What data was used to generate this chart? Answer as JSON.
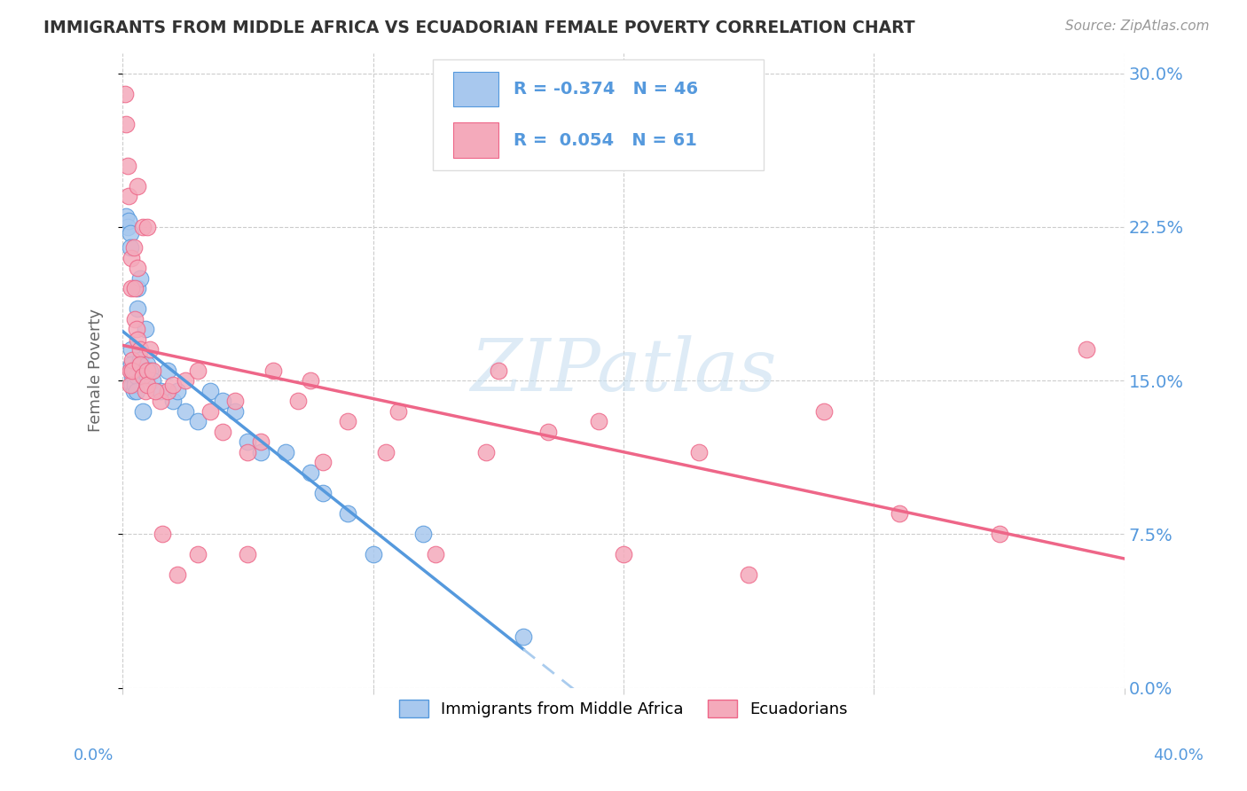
{
  "title": "IMMIGRANTS FROM MIDDLE AFRICA VS ECUADORIAN FEMALE POVERTY CORRELATION CHART",
  "source": "Source: ZipAtlas.com",
  "ylabel": "Female Poverty",
  "yticks": [
    "0.0%",
    "7.5%",
    "15.0%",
    "22.5%",
    "30.0%"
  ],
  "ytick_vals": [
    0.0,
    7.5,
    15.0,
    22.5,
    30.0
  ],
  "xlim": [
    0.0,
    40.0
  ],
  "ylim": [
    0.0,
    31.0
  ],
  "legend_label1": "Immigrants from Middle Africa",
  "legend_label2": "Ecuadorians",
  "R1": "-0.374",
  "N1": "46",
  "R2": "0.054",
  "N2": "61",
  "color_blue": "#A8C8EE",
  "color_pink": "#F4AABB",
  "color_line_blue": "#5599DD",
  "color_line_pink": "#EE6688",
  "color_line_dashed": "#AACCEE",
  "color_axis": "#5599DD",
  "watermark_color": "#C8DFF0",
  "blue_points_x": [
    0.15,
    0.2,
    0.25,
    0.3,
    0.3,
    0.35,
    0.35,
    0.4,
    0.4,
    0.4,
    0.45,
    0.45,
    0.5,
    0.5,
    0.5,
    0.55,
    0.55,
    0.6,
    0.6,
    0.7,
    0.7,
    0.8,
    0.8,
    0.9,
    1.0,
    1.0,
    1.1,
    1.2,
    1.5,
    1.8,
    2.0,
    2.2,
    2.5,
    3.0,
    3.5,
    4.0,
    4.5,
    5.0,
    5.5,
    6.5,
    7.5,
    8.0,
    9.0,
    10.0,
    12.0,
    16.0
  ],
  "blue_points_y": [
    23.0,
    22.5,
    22.8,
    22.2,
    21.5,
    16.5,
    15.8,
    15.5,
    15.2,
    14.8,
    15.5,
    14.5,
    15.5,
    15.0,
    14.8,
    15.2,
    14.5,
    19.5,
    18.5,
    20.0,
    16.0,
    15.5,
    13.5,
    17.5,
    15.8,
    15.2,
    15.5,
    15.0,
    14.5,
    15.5,
    14.0,
    14.5,
    13.5,
    13.0,
    14.5,
    14.0,
    13.5,
    12.0,
    11.5,
    11.5,
    10.5,
    9.5,
    8.5,
    6.5,
    7.5,
    2.5
  ],
  "pink_points_x": [
    0.1,
    0.15,
    0.2,
    0.25,
    0.3,
    0.3,
    0.35,
    0.35,
    0.4,
    0.4,
    0.45,
    0.5,
    0.5,
    0.55,
    0.6,
    0.6,
    0.7,
    0.7,
    0.8,
    0.9,
    1.0,
    1.0,
    1.1,
    1.2,
    1.5,
    1.8,
    2.0,
    2.5,
    3.0,
    3.5,
    4.0,
    4.5,
    5.0,
    5.5,
    6.0,
    7.0,
    7.5,
    9.0,
    10.5,
    11.0,
    12.5,
    14.5,
    15.0,
    17.0,
    19.0,
    20.0,
    23.0,
    25.0,
    28.0,
    31.0,
    35.0,
    0.6,
    0.8,
    1.0,
    1.3,
    1.6,
    2.2,
    3.0,
    5.0,
    8.0,
    38.5
  ],
  "pink_points_y": [
    29.0,
    27.5,
    25.5,
    24.0,
    15.5,
    14.8,
    21.0,
    19.5,
    16.0,
    15.5,
    21.5,
    19.5,
    18.0,
    17.5,
    20.5,
    17.0,
    16.5,
    15.8,
    15.2,
    14.5,
    15.5,
    14.8,
    16.5,
    15.5,
    14.0,
    14.5,
    14.8,
    15.0,
    15.5,
    13.5,
    12.5,
    14.0,
    11.5,
    12.0,
    15.5,
    14.0,
    15.0,
    13.0,
    11.5,
    13.5,
    6.5,
    11.5,
    15.5,
    12.5,
    13.0,
    6.5,
    11.5,
    5.5,
    13.5,
    8.5,
    7.5,
    24.5,
    22.5,
    22.5,
    14.5,
    7.5,
    5.5,
    6.5,
    6.5,
    11.0,
    16.5
  ]
}
